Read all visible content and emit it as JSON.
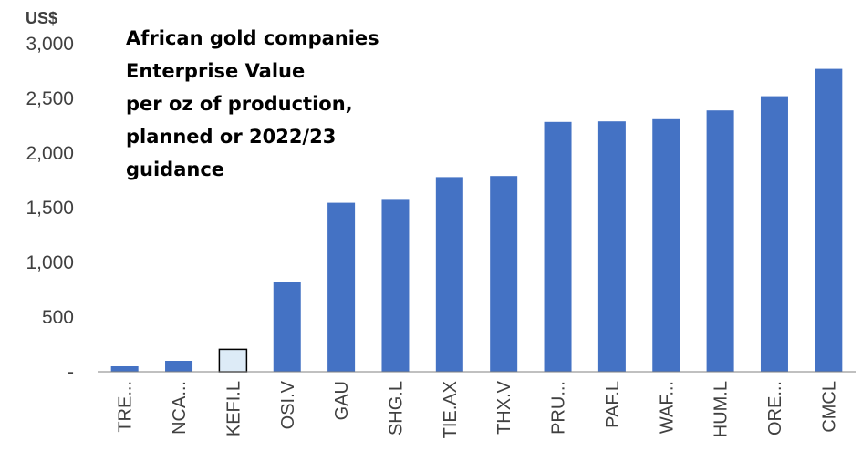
{
  "chart_data": {
    "type": "bar",
    "title_lines": [
      "African gold companies",
      "Enterprise Value",
      "per oz of production,",
      "planned or 2022/23",
      "guidance"
    ],
    "ylabel": "US$",
    "ylim": [
      0,
      3000
    ],
    "yticks": [
      {
        "value": 0,
        "label": "-"
      },
      {
        "value": 500,
        "label": "500"
      },
      {
        "value": 1000,
        "label": "1,000"
      },
      {
        "value": 1500,
        "label": "1,500"
      },
      {
        "value": 2000,
        "label": "2,000"
      },
      {
        "value": 2500,
        "label": "2,500"
      },
      {
        "value": 3000,
        "label": "3,000"
      }
    ],
    "grid": false,
    "categories": [
      "TRE...",
      "NCA...",
      "KEFI.L",
      "OSI.V",
      "GAU",
      "SHG.L",
      "TIE.AX",
      "THX.V",
      "PRU...",
      "PAF.L",
      "WAF...",
      "HUM.L",
      "ORE...",
      "CMCL"
    ],
    "values": [
      50,
      100,
      205,
      825,
      1545,
      1580,
      1780,
      1790,
      2285,
      2290,
      2310,
      2390,
      2520,
      2770
    ],
    "colors": {
      "bar": "#4472C4",
      "highlight_fill": "#DDEBF7",
      "highlight_stroke": "#000000",
      "axis": "#808080"
    },
    "highlight_category": "KEFI.L"
  }
}
